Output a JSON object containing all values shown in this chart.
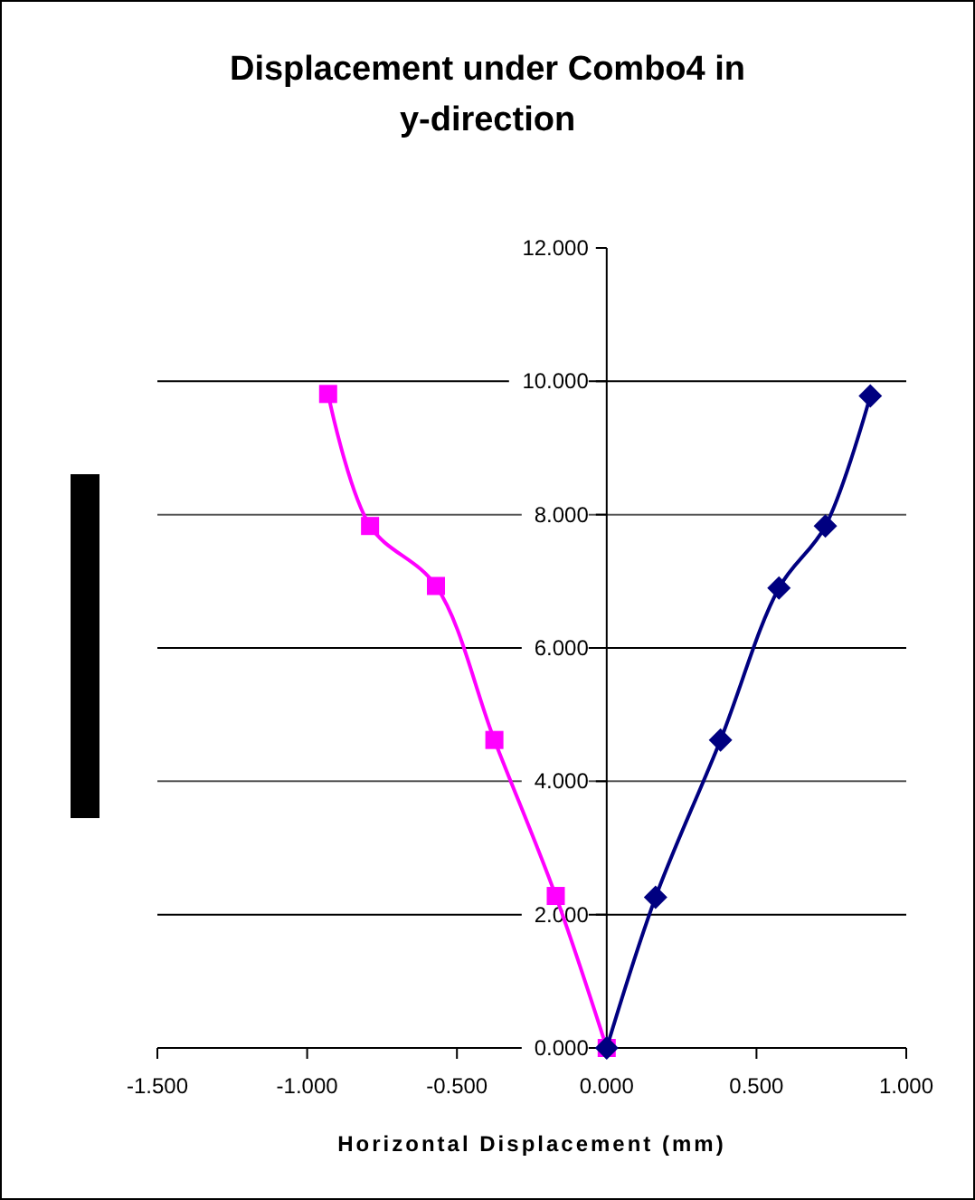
{
  "chart_data": {
    "type": "line",
    "title": "Displacement under Combo4 in y-direction",
    "xlabel": "Horizontal Displacement (mm)",
    "series": [
      {
        "color": "#ff00ff",
        "marker": "square",
        "x": [
          0,
          -0.17,
          -0.375,
          -0.57,
          -0.79,
          -0.93
        ],
        "values": [
          0,
          2.28,
          4.62,
          6.93,
          7.83,
          9.81
        ]
      },
      {
        "color": "#000080",
        "marker": "diamond",
        "x": [
          0,
          0.163,
          0.38,
          0.575,
          0.73,
          0.88
        ],
        "values": [
          0,
          2.26,
          4.62,
          6.9,
          7.83,
          9.78
        ]
      }
    ],
    "xlim": [
      -1.5,
      1.0
    ],
    "ylim": [
      0,
      12
    ],
    "xticks": [
      {
        "value": -1.5,
        "label": "-1.500"
      },
      {
        "value": -1,
        "label": "-1.000"
      },
      {
        "value": -0.5,
        "label": "-0.500"
      },
      {
        "value": 0,
        "label": "0.000"
      },
      {
        "value": 0.5,
        "label": "0.500"
      },
      {
        "value": 1,
        "label": "1.000"
      }
    ],
    "yticks": [
      {
        "value": 0,
        "label": "0.000"
      },
      {
        "value": 2,
        "label": "2.000"
      },
      {
        "value": 4,
        "label": "4.000"
      },
      {
        "value": 6,
        "label": "6.000"
      },
      {
        "value": 8,
        "label": "8.000"
      },
      {
        "value": 10,
        "label": "10.000"
      },
      {
        "value": 12,
        "label": "12.000"
      }
    ],
    "grid": "y"
  }
}
